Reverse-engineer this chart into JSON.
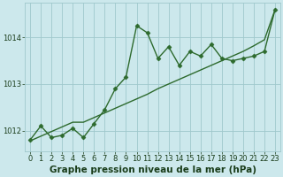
{
  "xlabel": "Graphe pression niveau de la mer (hPa)",
  "x_values": [
    0,
    1,
    2,
    3,
    4,
    5,
    6,
    7,
    8,
    9,
    10,
    11,
    12,
    13,
    14,
    15,
    16,
    17,
    18,
    19,
    20,
    21,
    22,
    23
  ],
  "y_line1": [
    1011.8,
    1012.1,
    1011.85,
    1011.9,
    1012.05,
    1011.85,
    1012.15,
    1012.45,
    1012.9,
    1013.15,
    1014.25,
    1014.1,
    1013.55,
    1013.8,
    1013.4,
    1013.7,
    1013.6,
    1013.85,
    1013.55,
    1013.5,
    1013.55,
    1013.6,
    1013.7,
    1014.6
  ],
  "y_line2": [
    1011.78,
    1011.88,
    1011.98,
    1012.08,
    1012.18,
    1012.18,
    1012.28,
    1012.38,
    1012.48,
    1012.58,
    1012.68,
    1012.78,
    1012.9,
    1013.0,
    1013.1,
    1013.2,
    1013.3,
    1013.4,
    1013.5,
    1013.6,
    1013.7,
    1013.82,
    1013.95,
    1014.6
  ],
  "line_color": "#2d6a2d",
  "bg_color": "#cce8ec",
  "grid_color": "#9fc8cc",
  "label_color": "#1a3d1a",
  "ylim": [
    1011.55,
    1014.75
  ],
  "yticks": [
    1012,
    1013,
    1014
  ],
  "marker": "D",
  "marker_size": 2.5,
  "line_width": 1.0,
  "xlabel_fontsize": 7.5,
  "tick_fontsize": 6.0
}
